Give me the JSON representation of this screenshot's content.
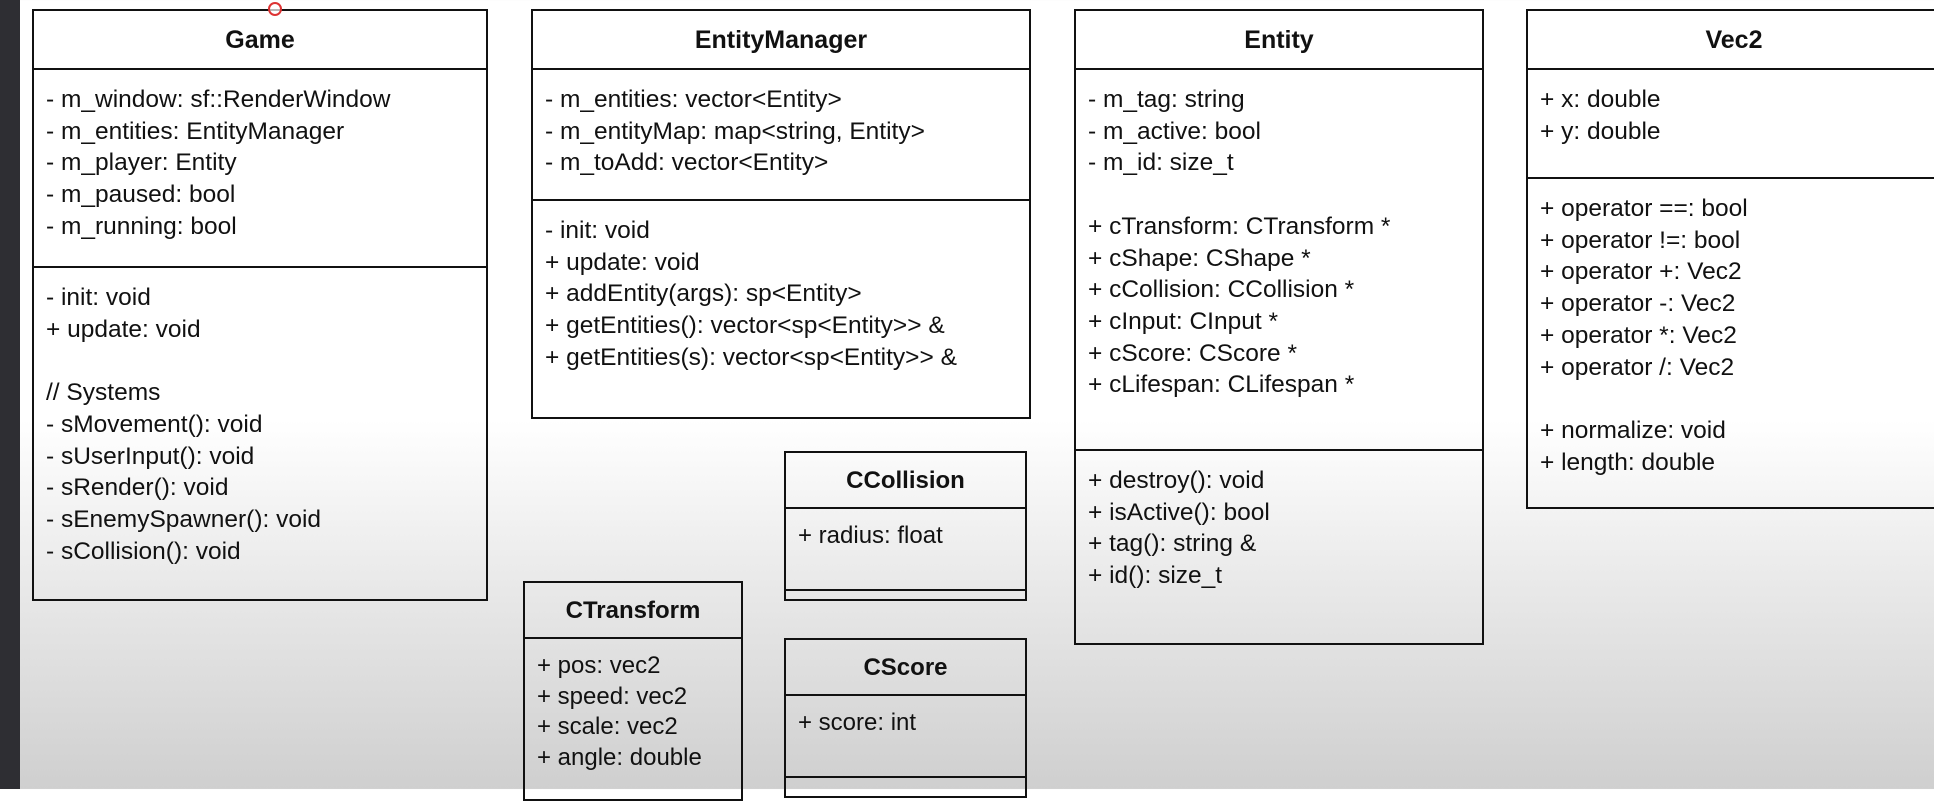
{
  "classes": {
    "game": {
      "name": "Game",
      "attributes": [
        "- m_window: sf::RenderWindow",
        "- m_entities: EntityManager",
        "- m_player: Entity",
        "- m_paused: bool",
        "- m_running: bool"
      ],
      "methods": [
        "- init: void",
        "+ update: void"
      ],
      "systems_comment": "// Systems",
      "systems": [
        "- sMovement(): void",
        "- sUserInput(): void",
        "- sRender(): void",
        "- sEnemySpawner(): void",
        "- sCollision(): void"
      ]
    },
    "entity_manager": {
      "name": "EntityManager",
      "attributes": [
        "- m_entities: vector<Entity>",
        "- m_entityMap: map<string, Entity>",
        "- m_toAdd: vector<Entity>"
      ],
      "methods": [
        "- init: void",
        "+ update: void",
        "+ addEntity(args): sp<Entity>",
        "+ getEntities(): vector<sp<Entity>> &",
        "+ getEntities(s): vector<sp<Entity>> &"
      ]
    },
    "entity": {
      "name": "Entity",
      "attributes": [
        "- m_tag: string",
        "- m_active: bool",
        "- m_id: size_t"
      ],
      "components": [
        "+ cTransform: CTransform *",
        "+ cShape: CShape *",
        "+ cCollision: CCollision *",
        "+ cInput: CInput *",
        "+ cScore: CScore *",
        "+ cLifespan: CLifespan *"
      ],
      "methods": [
        "+ destroy(): void",
        "+ isActive(): bool",
        "+ tag(): string &",
        "+ id(): size_t"
      ]
    },
    "vec2": {
      "name": "Vec2",
      "attributes": [
        "+ x: double",
        "+ y: double"
      ],
      "operators": [
        "+ operator ==: bool",
        "+ operator !=: bool",
        "+ operator +: Vec2",
        "+ operator -: Vec2",
        "+ operator *: Vec2",
        "+ operator /: Vec2"
      ],
      "methods": [
        "+ normalize: void",
        "+ length: double"
      ]
    },
    "ccollision": {
      "name": "CCollision",
      "attributes": [
        "+ radius: float"
      ]
    },
    "ctransform": {
      "name": "CTransform",
      "attributes": [
        "+ pos: vec2",
        "+ speed: vec2",
        "+ scale: vec2",
        "+ angle: double"
      ]
    },
    "cscore": {
      "name": "CScore",
      "attributes": [
        "+ score: int"
      ]
    }
  },
  "colors": {
    "line": "#111111",
    "sidebar": "#2e2e33",
    "cursor": "#dd3333"
  }
}
